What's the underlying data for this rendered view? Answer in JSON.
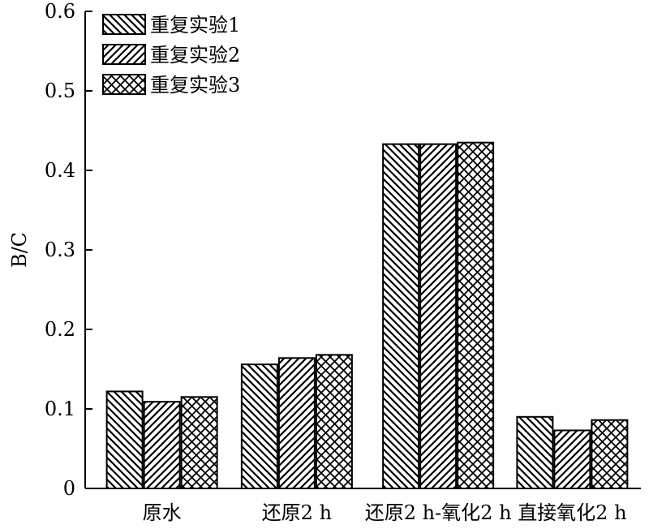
{
  "chart_data": {
    "type": "bar",
    "title": "",
    "xlabel": "",
    "ylabel": "B/C",
    "ylim": [
      0,
      0.6
    ],
    "yticks": [
      "0",
      "0.1",
      "0.2",
      "0.3",
      "0.4",
      "0.5",
      "0.6"
    ],
    "categories": [
      "原水",
      "还原2 h",
      "还原2 h-氧化2 h",
      "直接氧化2 h"
    ],
    "series": [
      {
        "name": "重复实验1",
        "values": [
          0.122,
          0.156,
          0.433,
          0.09
        ],
        "pattern": "backslash"
      },
      {
        "name": "重复实验2",
        "values": [
          0.109,
          0.164,
          0.433,
          0.073
        ],
        "pattern": "slash"
      },
      {
        "name": "重复实验3",
        "values": [
          0.115,
          0.168,
          0.435,
          0.086
        ],
        "pattern": "crosshatch"
      }
    ],
    "legend_position": "top-left",
    "grid": false
  }
}
